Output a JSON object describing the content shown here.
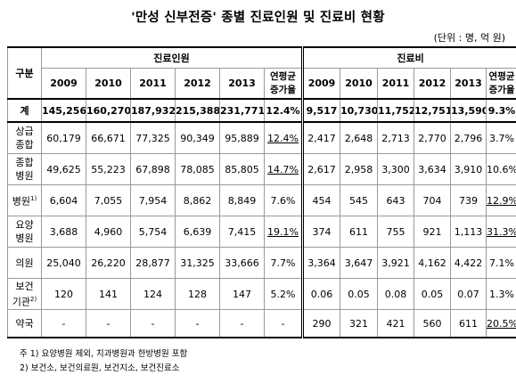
{
  "title": "'만성 신부전증' 종별 진료인원 및 진료비 현황",
  "unit": "(단위 : 명, 억 원)",
  "headers": {
    "category": "구분",
    "patients": "진료인원",
    "costs": "진료비",
    "years": [
      "2009",
      "2010",
      "2011",
      "2012",
      "2013"
    ],
    "rate_line1": "연평균",
    "rate_line2": "증가율"
  },
  "rows": [
    {
      "label": "계",
      "sup": "",
      "patients": [
        "145,256",
        "160,270",
        "187,932",
        "215,388",
        "231,771"
      ],
      "patients_rate": "12.4%",
      "costs": [
        "9,517",
        "10,730",
        "11,752",
        "12,751",
        "13,590"
      ],
      "costs_rate": "9.3%"
    },
    {
      "label": "상급\n종합",
      "sup": "",
      "patients": [
        "60,179",
        "66,671",
        "77,325",
        "90,349",
        "95,889"
      ],
      "patients_rate": "12.4%",
      "costs": [
        "2,417",
        "2,648",
        "2,713",
        "2,770",
        "2,796"
      ],
      "costs_rate": "3.7%"
    },
    {
      "label": "종합\n병원",
      "sup": "",
      "patients": [
        "49,625",
        "55,223",
        "67,898",
        "78,085",
        "85,805"
      ],
      "patients_rate": "14.7%",
      "costs": [
        "2,617",
        "2,958",
        "3,300",
        "3,634",
        "3,910"
      ],
      "costs_rate": "10.6%"
    },
    {
      "label": "병원",
      "sup": "1)",
      "patients": [
        "6,604",
        "7,055",
        "7,954",
        "8,862",
        "8,849"
      ],
      "patients_rate": "7.6%",
      "costs": [
        "454",
        "545",
        "643",
        "704",
        "739"
      ],
      "costs_rate": "12.9%"
    },
    {
      "label": "요양\n병원",
      "sup": "",
      "patients": [
        "3,688",
        "4,960",
        "5,754",
        "6,639",
        "7,415"
      ],
      "patients_rate": "19.1%",
      "costs": [
        "374",
        "611",
        "755",
        "921",
        "1,113"
      ],
      "costs_rate": "31.3%"
    },
    {
      "label": "의원",
      "sup": "",
      "patients": [
        "25,040",
        "26,220",
        "28,877",
        "31,325",
        "33,666"
      ],
      "patients_rate": "7.7%",
      "costs": [
        "3,364",
        "3,647",
        "3,921",
        "4,162",
        "4,422"
      ],
      "costs_rate": "7.1%"
    },
    {
      "label": "보건\n기관",
      "sup": "2)",
      "patients": [
        "120",
        "141",
        "124",
        "128",
        "147"
      ],
      "patients_rate": "5.2%",
      "costs": [
        "0.06",
        "0.05",
        "0.08",
        "0.05",
        "0.07"
      ],
      "costs_rate": "1.3%"
    },
    {
      "label": "약국",
      "sup": "",
      "patients": [
        "-",
        "-",
        "-",
        "-",
        "-"
      ],
      "patients_rate": "-",
      "costs": [
        "290",
        "321",
        "421",
        "560",
        "611"
      ],
      "costs_rate": "20.5%"
    }
  ],
  "notes": [
    "주 1) 요양병원 제외, 치과병원과 한방병원 포함",
    "2) 보건소, 보건의료원, 보건지소, 보건진료소"
  ]
}
